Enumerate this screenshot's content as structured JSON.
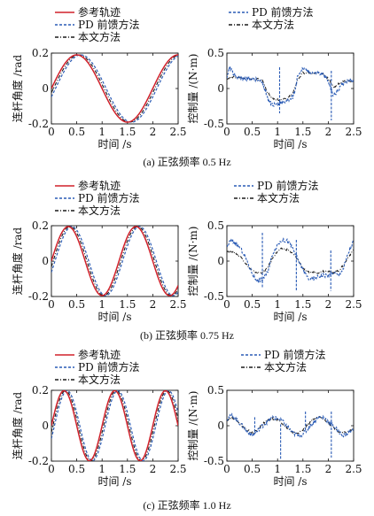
{
  "legend_labels": {
    "ref": "参考轨迹",
    "pd": "PD 前馈方法",
    "ours": "本文方法"
  },
  "colors": {
    "ref": "#d0202a",
    "pd": "#2a5bb5",
    "ours": "#1a1a1a"
  },
  "rows": [
    {
      "caption": "(a) 正弦频率 0.5 Hz",
      "left": {
        "chart_data": {
          "type": "line",
          "ylabel": "连杆角度 /rad",
          "xlabel": "时间 /s",
          "xlim": [
            0,
            2.5
          ],
          "ylim": [
            -0.2,
            0.2
          ],
          "xticks": [
            "0",
            "0.5",
            "1",
            "1.5",
            "2",
            "2.5"
          ],
          "yticks": [
            "-0.2",
            "0",
            "0.2"
          ],
          "sine": {
            "amp": 0.19,
            "freq": 0.5,
            "pd_lag": 0.08,
            "ours_lag": 0.04
          },
          "series": [
            {
              "name": "参考轨迹",
              "x": [
                0,
                0.25,
                0.5,
                0.75,
                1.0,
                1.25,
                1.5,
                1.75,
                2.0,
                2.25,
                2.5
              ],
              "y": [
                0,
                0.134,
                0.19,
                0.134,
                0,
                -0.134,
                -0.19,
                -0.134,
                0,
                0.134,
                0.19
              ]
            },
            {
              "name": "PD 前馈方法",
              "x": [
                0,
                0.5,
                1.0,
                1.5,
                2.0,
                2.5
              ],
              "y": [
                -0.05,
                0.183,
                0.05,
                -0.183,
                -0.05,
                0.183
              ]
            },
            {
              "name": "本文方法",
              "x": [
                0,
                0.5,
                1.0,
                1.5,
                2.0,
                2.5
              ],
              "y": [
                -0.024,
                0.188,
                0.024,
                -0.188,
                -0.024,
                0.188
              ]
            }
          ]
        }
      },
      "right": {
        "chart_data": {
          "type": "line",
          "ylabel": "控制量 /(N·m)",
          "xlabel": "时间 /s",
          "xlim": [
            0,
            2.5
          ],
          "ylim": [
            -0.5,
            0.5
          ],
          "xticks": [
            "0",
            "0.5",
            "1",
            "1.5",
            "2",
            "2.5"
          ],
          "yticks": [
            "-0.5",
            "0",
            "0.5"
          ],
          "series": [
            {
              "name": "PD 前馈方法",
              "x": [
                0,
                0.05,
                0.12,
                0.2,
                0.3,
                0.4,
                0.5,
                0.6,
                0.7,
                0.75,
                0.8,
                0.85,
                0.9,
                1.0,
                1.05,
                1.1,
                1.2,
                1.3,
                1.35,
                1.4,
                1.5,
                1.6,
                1.7,
                1.8,
                1.9,
                2.0,
                2.05,
                2.1,
                2.2,
                2.3,
                2.4,
                2.5
              ],
              "y": [
                0.12,
                0.3,
                0.22,
                0.16,
                0.14,
                0.14,
                0.14,
                0.12,
                0.08,
                0.0,
                -0.12,
                -0.2,
                -0.22,
                -0.24,
                -0.2,
                -0.2,
                -0.16,
                -0.12,
                -0.02,
                0.2,
                0.28,
                0.24,
                0.22,
                0.22,
                0.2,
                0.1,
                0.0,
                -0.1,
                -0.02,
                0.08,
                0.12,
                0.1
              ],
              "spikes": [
                {
                  "x": 1.04,
                  "top": 0.3,
                  "bottom": -0.35
                },
                {
                  "x": 2.06,
                  "top": 0.25,
                  "bottom": -0.45
                }
              ]
            },
            {
              "name": "本文方法",
              "x": [
                0,
                0.1,
                0.2,
                0.3,
                0.5,
                0.7,
                0.8,
                0.9,
                1.0,
                1.1,
                1.2,
                1.3,
                1.4,
                1.5,
                1.7,
                1.9,
                2.0,
                2.1,
                2.2,
                2.3,
                2.5
              ],
              "y": [
                0.12,
                0.16,
                0.16,
                0.14,
                0.14,
                0.12,
                -0.06,
                -0.14,
                -0.16,
                -0.16,
                -0.14,
                -0.06,
                0.14,
                0.22,
                0.22,
                0.2,
                0.14,
                0.02,
                0.06,
                0.1,
                0.1
              ]
            }
          ]
        }
      }
    },
    {
      "caption": "(b) 正弦频率 0.75 Hz",
      "left": {
        "chart_data": {
          "type": "line",
          "ylabel": "连杆角度 /rad",
          "xlabel": "时间 /s",
          "xlim": [
            0,
            2.5
          ],
          "ylim": [
            -0.2,
            0.2
          ],
          "xticks": [
            "0",
            "0.5",
            "1",
            "1.5",
            "2",
            "2.5"
          ],
          "yticks": [
            "-0.2",
            "0",
            "0.2"
          ],
          "sine": {
            "amp": 0.195,
            "freq": 0.75,
            "pd_lag": 0.07,
            "ours_lag": 0.035
          },
          "series": [
            {
              "name": "参考轨迹",
              "x": [
                0,
                0.333,
                0.667,
                1.0,
                1.333,
                1.667,
                2.0,
                2.333
              ],
              "y": [
                0,
                0.195,
                0,
                -0.195,
                0,
                0.195,
                0,
                -0.195
              ]
            },
            {
              "name": "PD 前馈方法",
              "x": [
                0,
                0.403,
                0.737,
                1.07,
                1.403,
                1.737,
                2.07,
                2.403
              ],
              "y": [
                -0.063,
                0.195,
                0,
                -0.195,
                0,
                0.195,
                0,
                -0.195
              ]
            },
            {
              "name": "本文方法",
              "x": [
                0,
                0.368,
                0.702,
                1.035,
                1.368,
                1.702,
                2.035,
                2.368
              ],
              "y": [
                -0.032,
                0.195,
                0,
                -0.195,
                0,
                0.195,
                0,
                -0.195
              ]
            }
          ]
        }
      },
      "right": {
        "chart_data": {
          "type": "line",
          "ylabel": "控制量 /(N·m)",
          "xlabel": "时间 /s",
          "xlim": [
            0,
            2.5
          ],
          "ylim": [
            -0.5,
            0.5
          ],
          "xticks": [
            "0",
            "0.5",
            "1",
            "1.5",
            "2",
            "2.5"
          ],
          "yticks": [
            "-0.5",
            "0",
            "0.5"
          ],
          "series": [
            {
              "name": "PD 前馈方法",
              "x": [
                0,
                0.08,
                0.15,
                0.25,
                0.35,
                0.45,
                0.55,
                0.62,
                0.7,
                0.8,
                0.9,
                1.0,
                1.1,
                1.2,
                1.3,
                1.4,
                1.5,
                1.6,
                1.7,
                1.8,
                1.9,
                2.0,
                2.1,
                2.2,
                2.3,
                2.4,
                2.5
              ],
              "y": [
                0.2,
                0.3,
                0.26,
                0.2,
                0.08,
                -0.1,
                -0.24,
                -0.28,
                -0.26,
                -0.16,
                0.1,
                0.24,
                0.3,
                0.28,
                0.18,
                0.02,
                -0.12,
                -0.24,
                -0.26,
                -0.22,
                -0.2,
                -0.2,
                -0.16,
                -0.2,
                -0.1,
                0.12,
                0.28
              ],
              "spikes": [
                {
                  "x": 0.7,
                  "top": 0.4,
                  "bottom": -0.38
                },
                {
                  "x": 1.37,
                  "top": 0.3,
                  "bottom": -0.42
                },
                {
                  "x": 2.05,
                  "top": 0.15,
                  "bottom": -0.42
                }
              ]
            },
            {
              "name": "本文方法",
              "x": [
                0,
                0.1,
                0.2,
                0.3,
                0.4,
                0.5,
                0.6,
                0.7,
                0.8,
                0.9,
                1.0,
                1.1,
                1.2,
                1.3,
                1.4,
                1.5,
                1.6,
                1.7,
                1.8,
                1.9,
                2.0,
                2.1,
                2.2,
                2.3,
                2.4,
                2.5
              ],
              "y": [
                0.14,
                0.14,
                0.1,
                0.04,
                -0.06,
                -0.14,
                -0.16,
                -0.16,
                -0.1,
                0.04,
                0.14,
                0.18,
                0.16,
                0.1,
                0.02,
                -0.1,
                -0.16,
                -0.16,
                -0.16,
                -0.14,
                -0.14,
                -0.16,
                -0.14,
                -0.06,
                0.06,
                0.16
              ]
            }
          ]
        }
      }
    },
    {
      "caption": "(c) 正弦频率 1.0 Hz",
      "left": {
        "chart_data": {
          "type": "line",
          "ylabel": "连杆角度 /rad",
          "xlabel": "时间 /s",
          "xlim": [
            0,
            2.5
          ],
          "ylim": [
            -0.2,
            0.2
          ],
          "xticks": [
            "0",
            "0.5",
            "1",
            "1.5",
            "2",
            "2.5"
          ],
          "yticks": [
            "-0.2",
            "0",
            "0.2"
          ],
          "sine": {
            "amp": 0.198,
            "freq": 1.0,
            "pd_lag": 0.06,
            "ours_lag": 0.03
          },
          "series": [
            {
              "name": "参考轨迹",
              "x": [
                0,
                0.25,
                0.5,
                0.75,
                1.0,
                1.25,
                1.5,
                1.75,
                2.0,
                2.25,
                2.5
              ],
              "y": [
                0,
                0.198,
                0,
                -0.198,
                0,
                0.198,
                0,
                -0.198,
                0,
                0.198,
                0
              ]
            },
            {
              "name": "PD 前馈方法",
              "x": [
                0,
                0.31,
                0.56,
                0.81,
                1.06,
                1.31,
                1.56,
                1.81,
                2.06,
                2.31
              ],
              "y": [
                -0.073,
                0.198,
                0,
                -0.198,
                0,
                0.198,
                0,
                -0.198,
                0,
                0.198
              ]
            },
            {
              "name": "本文方法",
              "x": [
                0,
                0.28,
                0.53,
                0.78,
                1.03,
                1.28,
                1.53,
                1.78,
                2.03,
                2.28
              ],
              "y": [
                -0.037,
                0.198,
                0,
                -0.198,
                0,
                0.198,
                0,
                -0.198,
                0,
                0.198
              ]
            }
          ]
        }
      },
      "right": {
        "chart_data": {
          "type": "line",
          "ylabel": "控制量 /(N·m)",
          "xlabel": "时间 /s",
          "xlim": [
            0,
            2.5
          ],
          "ylim": [
            -0.5,
            0.5
          ],
          "xticks": [
            "0",
            "0.5",
            "1",
            "1.5",
            "2",
            "2.5"
          ],
          "yticks": [
            "-0.5",
            "0",
            "0.5"
          ],
          "series": [
            {
              "name": "PD 前馈方法",
              "x": [
                0,
                0.1,
                0.2,
                0.3,
                0.4,
                0.5,
                0.6,
                0.7,
                0.8,
                0.9,
                1.0,
                1.1,
                1.2,
                1.3,
                1.4,
                1.5,
                1.6,
                1.7,
                1.8,
                1.9,
                2.0,
                2.1,
                2.2,
                2.3,
                2.4,
                2.5
              ],
              "y": [
                0.1,
                0.14,
                0.08,
                0.0,
                -0.08,
                -0.14,
                -0.08,
                0.0,
                0.06,
                0.12,
                0.1,
                0.06,
                -0.02,
                -0.1,
                -0.14,
                -0.12,
                -0.04,
                0.04,
                0.12,
                0.12,
                0.06,
                0.0,
                -0.08,
                -0.14,
                -0.1,
                -0.06
              ],
              "spikes": [
                {
                  "x": 0.55,
                  "top": 0.12,
                  "bottom": -0.12
                },
                {
                  "x": 1.06,
                  "top": 0.02,
                  "bottom": -0.48
                },
                {
                  "x": 1.55,
                  "top": 0.2,
                  "bottom": -0.08
                },
                {
                  "x": 2.06,
                  "top": 0.2,
                  "bottom": -0.45
                }
              ]
            },
            {
              "name": "本文方法",
              "x": [
                0,
                0.1,
                0.2,
                0.3,
                0.4,
                0.5,
                0.6,
                0.7,
                0.8,
                0.9,
                1.0,
                1.1,
                1.2,
                1.3,
                1.4,
                1.5,
                1.6,
                1.7,
                1.8,
                1.9,
                2.0,
                2.1,
                2.2,
                2.3,
                2.4,
                2.5
              ],
              "y": [
                0.08,
                0.12,
                0.08,
                0.0,
                -0.06,
                -0.1,
                -0.06,
                0.02,
                0.08,
                0.1,
                0.08,
                0.02,
                -0.04,
                -0.1,
                -0.1,
                -0.06,
                0.02,
                0.08,
                0.12,
                0.1,
                0.04,
                -0.02,
                -0.08,
                -0.1,
                -0.08,
                -0.04
              ]
            }
          ]
        }
      }
    }
  ]
}
